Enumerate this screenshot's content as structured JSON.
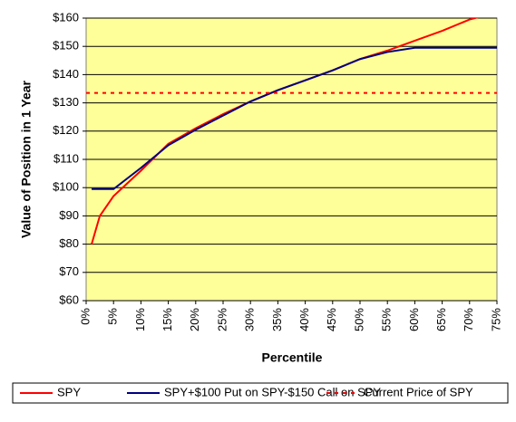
{
  "chart_data": {
    "type": "line",
    "xlabel": "Percentile",
    "ylabel": "Value of Position in 1 Year",
    "xlim": [
      0,
      75
    ],
    "xticks": [
      {
        "value": 0,
        "label": "0%"
      },
      {
        "value": 5,
        "label": "5%"
      },
      {
        "value": 10,
        "label": "10%"
      },
      {
        "value": 15,
        "label": "15%"
      },
      {
        "value": 20,
        "label": "20%"
      },
      {
        "value": 25,
        "label": "25%"
      },
      {
        "value": 30,
        "label": "30%"
      },
      {
        "value": 35,
        "label": "35%"
      },
      {
        "value": 40,
        "label": "40%"
      },
      {
        "value": 45,
        "label": "45%"
      },
      {
        "value": 50,
        "label": "50%"
      },
      {
        "value": 55,
        "label": "55%"
      },
      {
        "value": 60,
        "label": "60%"
      },
      {
        "value": 65,
        "label": "65%"
      },
      {
        "value": 70,
        "label": "70%"
      },
      {
        "value": 75,
        "label": "75%"
      }
    ],
    "ylim": [
      60,
      160
    ],
    "yticks": [
      {
        "value": 60,
        "label": "$60"
      },
      {
        "value": 70,
        "label": "$70"
      },
      {
        "value": 80,
        "label": "$80"
      },
      {
        "value": 90,
        "label": "$90"
      },
      {
        "value": 100,
        "label": "$100"
      },
      {
        "value": 110,
        "label": "$110"
      },
      {
        "value": 120,
        "label": "$120"
      },
      {
        "value": 130,
        "label": "$130"
      },
      {
        "value": 140,
        "label": "$140"
      },
      {
        "value": 150,
        "label": "$150"
      },
      {
        "value": 160,
        "label": "$160"
      }
    ],
    "grid": true,
    "legend": "bottom",
    "series": [
      {
        "name": "SPY",
        "color": "#ff0000",
        "x": [
          1,
          2.5,
          5,
          10,
          15,
          20,
          25,
          30,
          35,
          40,
          45,
          50,
          55,
          60,
          65,
          70,
          72
        ],
        "values": [
          80,
          90,
          97,
          106,
          115.5,
          121,
          126,
          130.5,
          134.5,
          138,
          141.5,
          145.5,
          148.5,
          152,
          155.5,
          159.5,
          160.5
        ]
      },
      {
        "name": "SPY+$100 Put on SPY-$150 Call on SPY",
        "color": "#000080",
        "x": [
          1,
          5,
          10,
          15,
          20,
          25,
          30,
          35,
          40,
          45,
          50,
          55,
          60,
          65,
          70,
          75
        ],
        "values": [
          99.5,
          99.5,
          107,
          115,
          120.5,
          125.5,
          130.5,
          134.5,
          138,
          141.5,
          145.5,
          148,
          149.5,
          149.5,
          149.5,
          149.5
        ]
      },
      {
        "name": "Current Price of SPY",
        "color": "#ff0000",
        "dashed": true,
        "value": 133.5
      }
    ]
  }
}
